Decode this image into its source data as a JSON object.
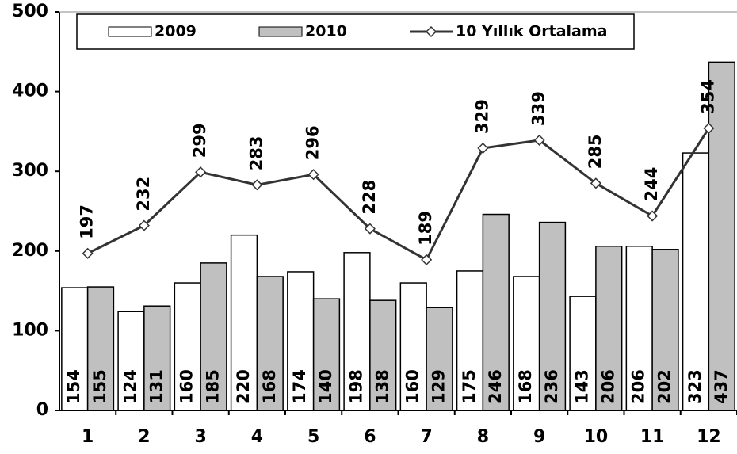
{
  "chart_data": {
    "type": "bar",
    "categories": [
      "1",
      "2",
      "3",
      "4",
      "5",
      "6",
      "7",
      "8",
      "9",
      "10",
      "11",
      "12"
    ],
    "series": [
      {
        "name": "2009",
        "type": "bar",
        "color": "#ffffff",
        "values": [
          154,
          124,
          160,
          220,
          174,
          198,
          160,
          175,
          168,
          143,
          206,
          323
        ]
      },
      {
        "name": "2010",
        "type": "bar",
        "color": "#c0c0c0",
        "values": [
          155,
          131,
          185,
          168,
          140,
          138,
          129,
          246,
          236,
          206,
          202,
          437
        ]
      },
      {
        "name": "10 Yıllık Ortalama",
        "type": "line",
        "color": "#333333",
        "values": [
          197,
          232,
          299,
          283,
          296,
          228,
          189,
          329,
          339,
          285,
          244,
          354
        ]
      }
    ],
    "ylim": [
      0,
      500
    ],
    "yticks": [
      0,
      100,
      200,
      300,
      400,
      500
    ],
    "grid": false,
    "legend": "top"
  }
}
